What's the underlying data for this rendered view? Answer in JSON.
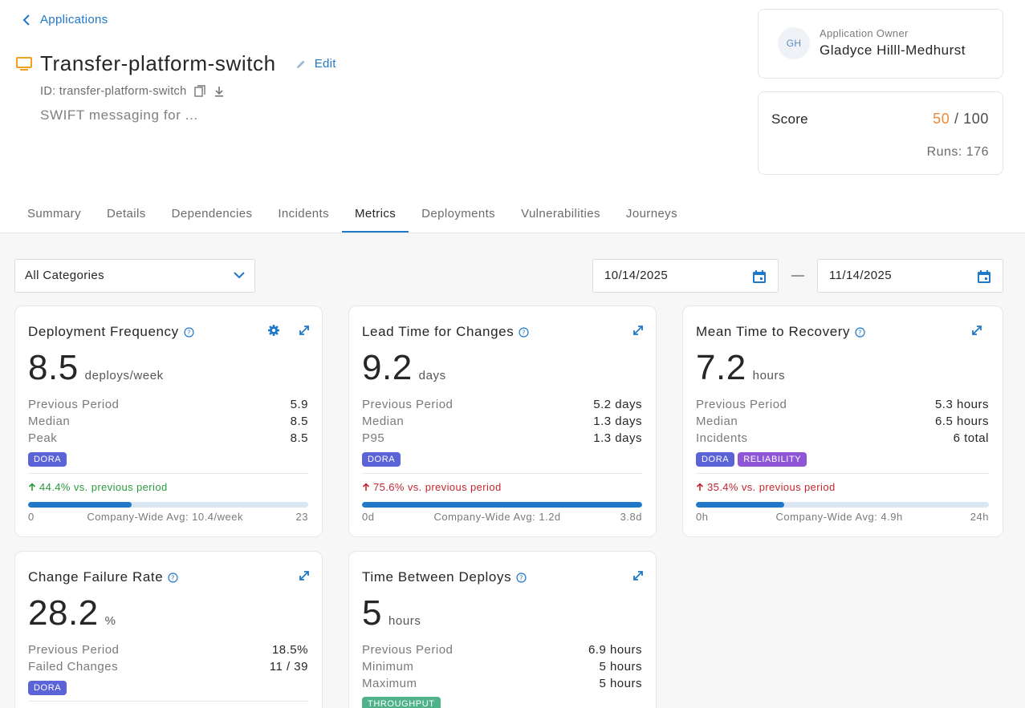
{
  "nav": {
    "back_label": "Applications"
  },
  "app": {
    "title": "Transfer-platform-switch",
    "edit_label": "Edit",
    "id_text": "ID: transfer-platform-switch",
    "description": "SWIFT messaging for ..."
  },
  "owner": {
    "label": "Application Owner",
    "name": "Gladyce Hilll-Medhurst",
    "initials": "GH"
  },
  "score": {
    "label": "Score",
    "value": "50",
    "max": "100",
    "separator": "/",
    "runs": "Runs: 176"
  },
  "tabs": [
    {
      "label": "Summary"
    },
    {
      "label": "Details"
    },
    {
      "label": "Dependencies"
    },
    {
      "label": "Incidents"
    },
    {
      "label": "Metrics"
    },
    {
      "label": "Deployments"
    },
    {
      "label": "Vulnerabilities"
    },
    {
      "label": "Journeys"
    }
  ],
  "active_tab": "Metrics",
  "filters": {
    "category": "All Categories",
    "date_from": "10/14/2025",
    "date_to": "11/14/2025"
  },
  "colors": {
    "accent": "#1f78c8",
    "score": "#e88a3a",
    "good": "#2a9a3c",
    "bad": "#c4262e",
    "dora": "#5a63d8",
    "reliability": "#8e55d6",
    "throughput": "#4eb28a"
  },
  "cards": {
    "deploy_freq": {
      "title": "Deployment Frequency",
      "value": "8.5",
      "unit": "deploys/week",
      "stats": [
        {
          "k": "Previous Period",
          "v": "5.9"
        },
        {
          "k": "Median",
          "v": "8.5"
        },
        {
          "k": "Peak",
          "v": "8.5"
        }
      ],
      "badges": [
        "DORA"
      ],
      "change": "44.4% vs. previous period",
      "progress": 0.37,
      "scale_min": "0",
      "scale_mid": "Company-Wide Avg: 10.4/week",
      "scale_max": "23"
    },
    "lead_time": {
      "title": "Lead Time for Changes",
      "value": "9.2",
      "unit": "days",
      "stats": [
        {
          "k": "Previous Period",
          "v": "5.2 days"
        },
        {
          "k": "Median",
          "v": "1.3 days"
        },
        {
          "k": "P95",
          "v": "1.3 days"
        }
      ],
      "badges": [
        "DORA"
      ],
      "change": "75.6% vs. previous period",
      "progress": 1.0,
      "scale_min": "0d",
      "scale_mid": "Company-Wide Avg: 1.2d",
      "scale_max": "3.8d"
    },
    "mttr": {
      "title": "Mean Time to Recovery",
      "value": "7.2",
      "unit": "hours",
      "stats": [
        {
          "k": "Previous Period",
          "v": "5.3 hours"
        },
        {
          "k": "Median",
          "v": "6.5 hours"
        },
        {
          "k": "Incidents",
          "v": "6 total"
        }
      ],
      "badges": [
        "DORA",
        "RELIABILITY"
      ],
      "change": "35.4% vs. previous period",
      "progress": 0.3,
      "scale_min": "0h",
      "scale_mid": "Company-Wide Avg: 4.9h",
      "scale_max": "24h"
    },
    "cfr": {
      "title": "Change Failure Rate",
      "value": "28.2",
      "unit": "%",
      "stats": [
        {
          "k": "Previous Period",
          "v": "18.5%"
        },
        {
          "k": "Failed Changes",
          "v": "11 / 39"
        }
      ],
      "badges": [
        "DORA"
      ]
    },
    "tbd": {
      "title": "Time Between Deploys",
      "value": "5",
      "unit": "hours",
      "stats": [
        {
          "k": "Previous Period",
          "v": "6.9 hours"
        },
        {
          "k": "Minimum",
          "v": "5 hours"
        },
        {
          "k": "Maximum",
          "v": "5 hours"
        }
      ],
      "badges": [
        "THROUGHPUT"
      ]
    }
  }
}
